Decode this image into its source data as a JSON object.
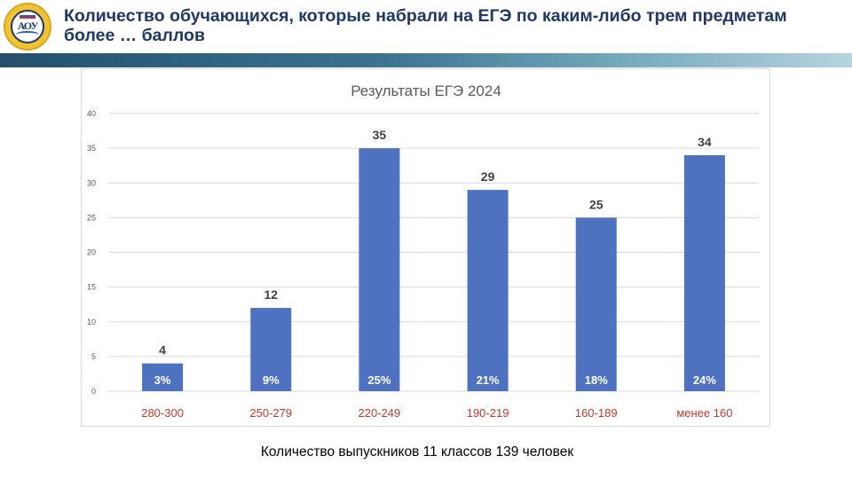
{
  "slide": {
    "title": "Количество обучающихся, которые набрали на ЕГЭ по каким-либо трем предметам более … баллов",
    "footer_note": "Количество выпускников 11 классов 139 человек"
  },
  "logo": {
    "icon": "school-emblem-icon",
    "letters": "АОУ"
  },
  "colors": {
    "title": "#1f3864",
    "bar": "#4f72c0",
    "category_label": "#c0392b",
    "value_label": "#404040",
    "percent_label": "#ffffff",
    "grid": "#d9d9d9",
    "axis_text": "#595959"
  },
  "chart_data": {
    "type": "bar",
    "title": "Результаты ЕГЭ 2024",
    "categories": [
      "280-300",
      "250-279",
      "220-249",
      "190-219",
      "160-189",
      "менее 160"
    ],
    "values": [
      4,
      12,
      35,
      29,
      25,
      34
    ],
    "percent_labels": [
      "3%",
      "9%",
      "25%",
      "21%",
      "18%",
      "24%"
    ],
    "ylim": [
      0,
      40
    ],
    "yticks": [
      0,
      5,
      10,
      15,
      20,
      25,
      30,
      35,
      40
    ],
    "grid": true,
    "legend": "none",
    "xlabel": "",
    "ylabel": ""
  }
}
